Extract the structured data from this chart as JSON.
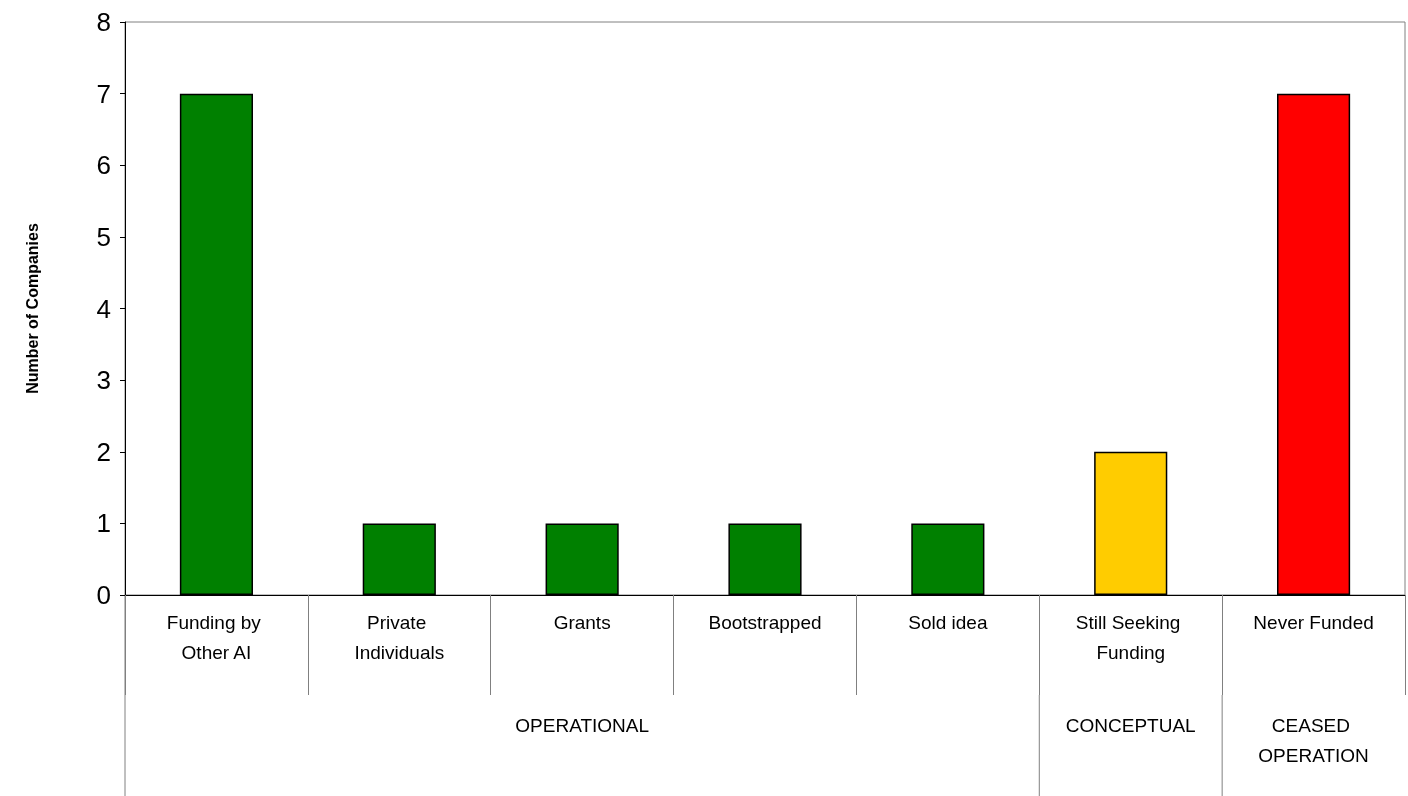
{
  "chart_data": {
    "type": "bar",
    "ylabel": "Number of Companies",
    "categories": [
      "Funding by Other AI",
      "Private Individuals",
      "Grants",
      "Bootstrapped",
      "Sold idea",
      "Still Seeking Funding",
      "Never Funded"
    ],
    "values": [
      7,
      1,
      1,
      1,
      1,
      2,
      7
    ],
    "colors": [
      "#008000",
      "#008000",
      "#008000",
      "#008000",
      "#008000",
      "#ffcc00",
      "#ff0000"
    ],
    "ylim": [
      0,
      8
    ],
    "yticks": [
      0,
      1,
      2,
      3,
      4,
      5,
      6,
      7,
      8
    ],
    "grid": false,
    "annotations": [
      "OPERATIONAL",
      "CONCEPTUAL",
      "CEASED OPERATION"
    ]
  }
}
